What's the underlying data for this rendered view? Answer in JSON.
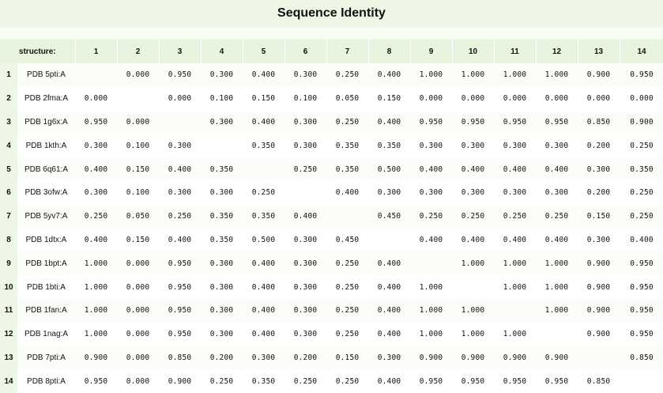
{
  "title": "Sequence Identity",
  "header_label": "structure:",
  "columns": [
    "1",
    "2",
    "3",
    "4",
    "5",
    "6",
    "7",
    "8",
    "9",
    "10",
    "11",
    "12",
    "13",
    "14"
  ],
  "rows": [
    {
      "num": "1",
      "label": "PDB 5pti:A",
      "values": [
        "",
        "0.000",
        "0.950",
        "0.300",
        "0.400",
        "0.300",
        "0.250",
        "0.400",
        "1.000",
        "1.000",
        "1.000",
        "1.000",
        "0.900",
        "0.950"
      ]
    },
    {
      "num": "2",
      "label": "PDB 2fma:A",
      "values": [
        "0.000",
        "",
        "0.000",
        "0.100",
        "0.150",
        "0.100",
        "0.050",
        "0.150",
        "0.000",
        "0.000",
        "0.000",
        "0.000",
        "0.000",
        "0.000"
      ]
    },
    {
      "num": "3",
      "label": "PDB 1g6x:A",
      "values": [
        "0.950",
        "0.000",
        "",
        "0.300",
        "0.400",
        "0.300",
        "0.250",
        "0.400",
        "0.950",
        "0.950",
        "0.950",
        "0.950",
        "0.850",
        "0.900"
      ]
    },
    {
      "num": "4",
      "label": "PDB 1kth:A",
      "values": [
        "0.300",
        "0.100",
        "0.300",
        "",
        "0.350",
        "0.300",
        "0.350",
        "0.350",
        "0.300",
        "0.300",
        "0.300",
        "0.300",
        "0.200",
        "0.250"
      ]
    },
    {
      "num": "5",
      "label": "PDB 6q61:A",
      "values": [
        "0.400",
        "0.150",
        "0.400",
        "0.350",
        "",
        "0.250",
        "0.350",
        "0.500",
        "0.400",
        "0.400",
        "0.400",
        "0.400",
        "0.300",
        "0.350"
      ]
    },
    {
      "num": "6",
      "label": "PDB 3ofw:A",
      "values": [
        "0.300",
        "0.100",
        "0.300",
        "0.300",
        "0.250",
        "",
        "0.400",
        "0.300",
        "0.300",
        "0.300",
        "0.300",
        "0.300",
        "0.200",
        "0.250"
      ]
    },
    {
      "num": "7",
      "label": "PDB 5yv7:A",
      "values": [
        "0.250",
        "0.050",
        "0.250",
        "0.350",
        "0.350",
        "0.400",
        "",
        "0.450",
        "0.250",
        "0.250",
        "0.250",
        "0.250",
        "0.150",
        "0.250"
      ]
    },
    {
      "num": "8",
      "label": "PDB 1dtx:A",
      "values": [
        "0.400",
        "0.150",
        "0.400",
        "0.350",
        "0.500",
        "0.300",
        "0.450",
        "",
        "0.400",
        "0.400",
        "0.400",
        "0.400",
        "0.300",
        "0.400"
      ]
    },
    {
      "num": "9",
      "label": "PDB 1bpt:A",
      "values": [
        "1.000",
        "0.000",
        "0.950",
        "0.300",
        "0.400",
        "0.300",
        "0.250",
        "0.400",
        "",
        "1.000",
        "1.000",
        "1.000",
        "0.900",
        "0.950"
      ]
    },
    {
      "num": "10",
      "label": "PDB 1bti:A",
      "values": [
        "1.000",
        "0.000",
        "0.950",
        "0.300",
        "0.400",
        "0.300",
        "0.250",
        "0.400",
        "1.000",
        "",
        "1.000",
        "1.000",
        "0.900",
        "0.950"
      ]
    },
    {
      "num": "11",
      "label": "PDB 1fan:A",
      "values": [
        "1.000",
        "0.000",
        "0.950",
        "0.300",
        "0.400",
        "0.300",
        "0.250",
        "0.400",
        "1.000",
        "1.000",
        "",
        "1.000",
        "0.900",
        "0.950"
      ]
    },
    {
      "num": "12",
      "label": "PDB 1nag:A",
      "values": [
        "1.000",
        "0.000",
        "0.950",
        "0.300",
        "0.400",
        "0.300",
        "0.250",
        "0.400",
        "1.000",
        "1.000",
        "1.000",
        "",
        "0.900",
        "0.950"
      ]
    },
    {
      "num": "13",
      "label": "PDB 7pti:A",
      "values": [
        "0.900",
        "0.000",
        "0.850",
        "0.200",
        "0.300",
        "0.200",
        "0.150",
        "0.300",
        "0.900",
        "0.900",
        "0.900",
        "0.900",
        "",
        "0.850"
      ]
    },
    {
      "num": "14",
      "label": "PDB 8pti:A",
      "values": [
        "0.950",
        "0.000",
        "0.900",
        "0.250",
        "0.350",
        "0.250",
        "0.250",
        "0.400",
        "0.950",
        "0.950",
        "0.950",
        "0.950",
        "0.850",
        ""
      ]
    }
  ]
}
